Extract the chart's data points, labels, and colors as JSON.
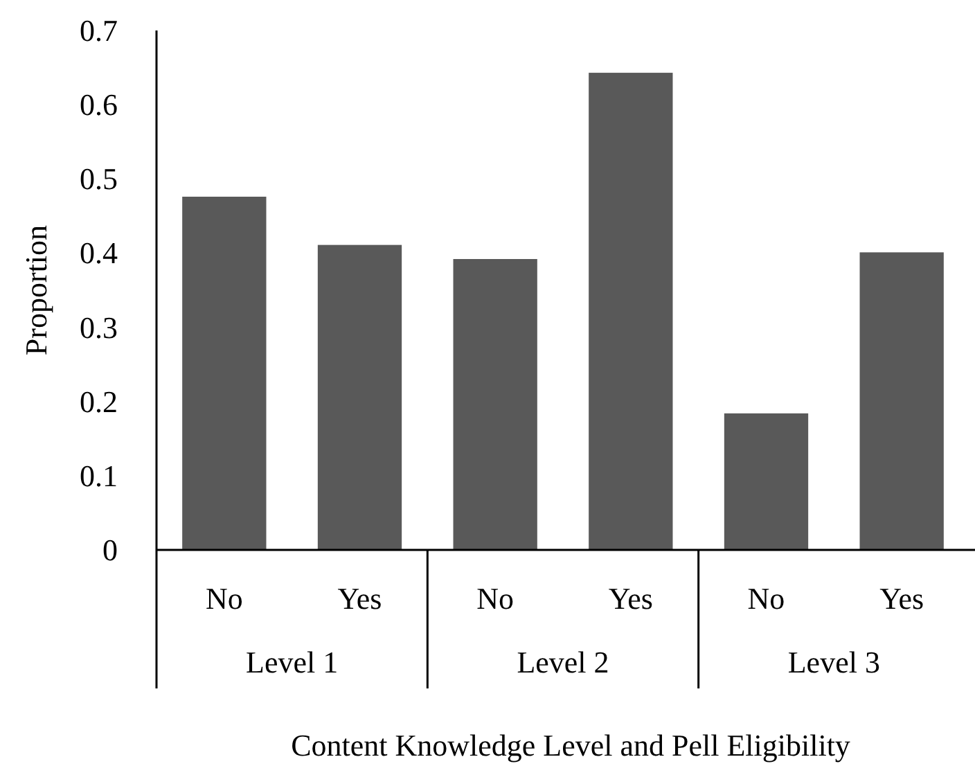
{
  "chart_data": {
    "type": "bar",
    "ylabel": "Proportion",
    "xlabel": "Content Knowledge Level and Pell Eligibility",
    "categories": [
      "No",
      "Yes",
      "No",
      "Yes",
      "No",
      "Yes"
    ],
    "annotations": [
      "Level 1",
      "Level 2",
      "Level 3"
    ],
    "values": [
      0.476,
      0.411,
      0.392,
      0.643,
      0.184,
      0.401
    ],
    "color": "#595959",
    "ylim": [
      0,
      0.7
    ],
    "yticks": [
      0,
      0.1,
      0.2,
      0.3,
      0.4,
      0.5,
      0.6,
      0.7
    ],
    "grid": false
  }
}
